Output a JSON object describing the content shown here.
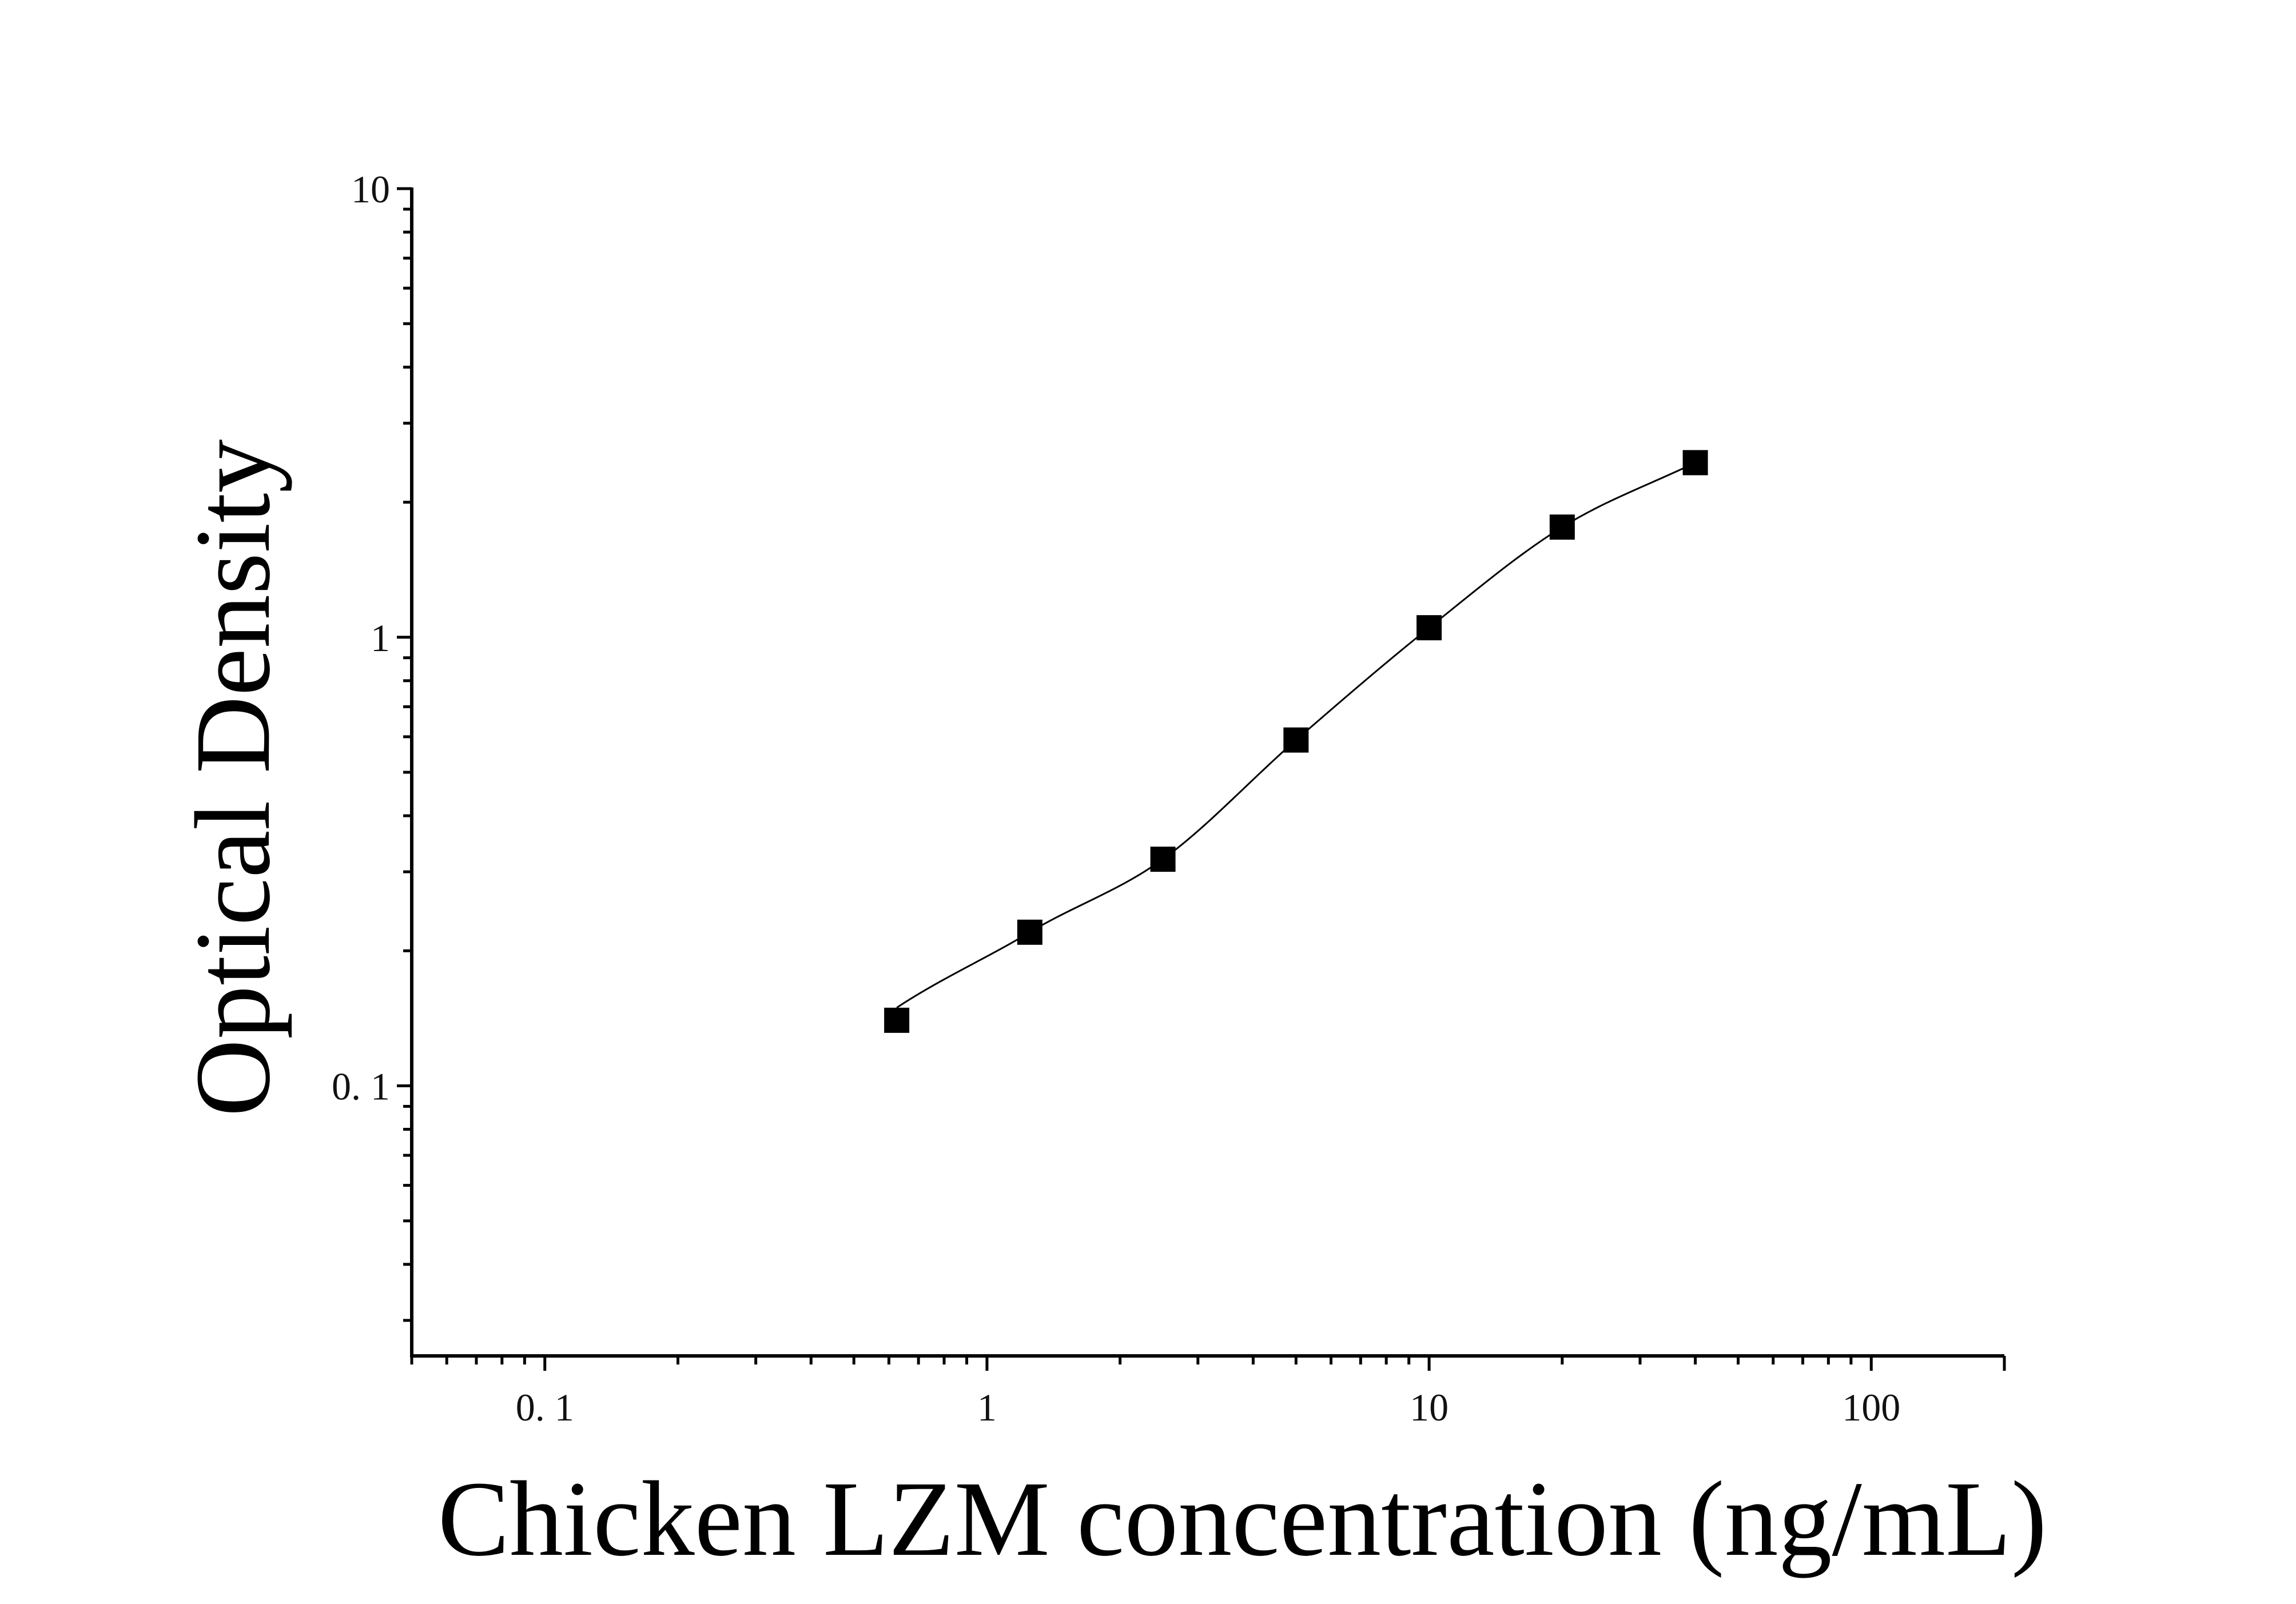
{
  "chart_data": {
    "type": "scatter",
    "x_scale": "log",
    "y_scale": "log",
    "xlabel": "Chicken LZM concentration (ng/mL)",
    "ylabel": "Optical Density",
    "xlim": [
      0.05,
      200
    ],
    "ylim": [
      0.025,
      10
    ],
    "x_ticks": [
      {
        "value": 0.1,
        "label": "0. 1"
      },
      {
        "value": 1,
        "label": "1"
      },
      {
        "value": 10,
        "label": "10"
      },
      {
        "value": 100,
        "label": "100"
      }
    ],
    "y_ticks": [
      {
        "value": 0.1,
        "label": "0. 1"
      },
      {
        "value": 1,
        "label": "1"
      },
      {
        "value": 10,
        "label": "10"
      }
    ],
    "grid": false,
    "series": [
      {
        "marker": "square",
        "color": "#000000",
        "x": [
          0.625,
          1.25,
          2.5,
          5,
          10,
          20,
          40
        ],
        "y": [
          0.14,
          0.22,
          0.32,
          0.59,
          1.05,
          1.76,
          2.45
        ]
      }
    ],
    "fit_curve": {
      "type": "four-parameter logistic",
      "color": "#000000"
    }
  }
}
